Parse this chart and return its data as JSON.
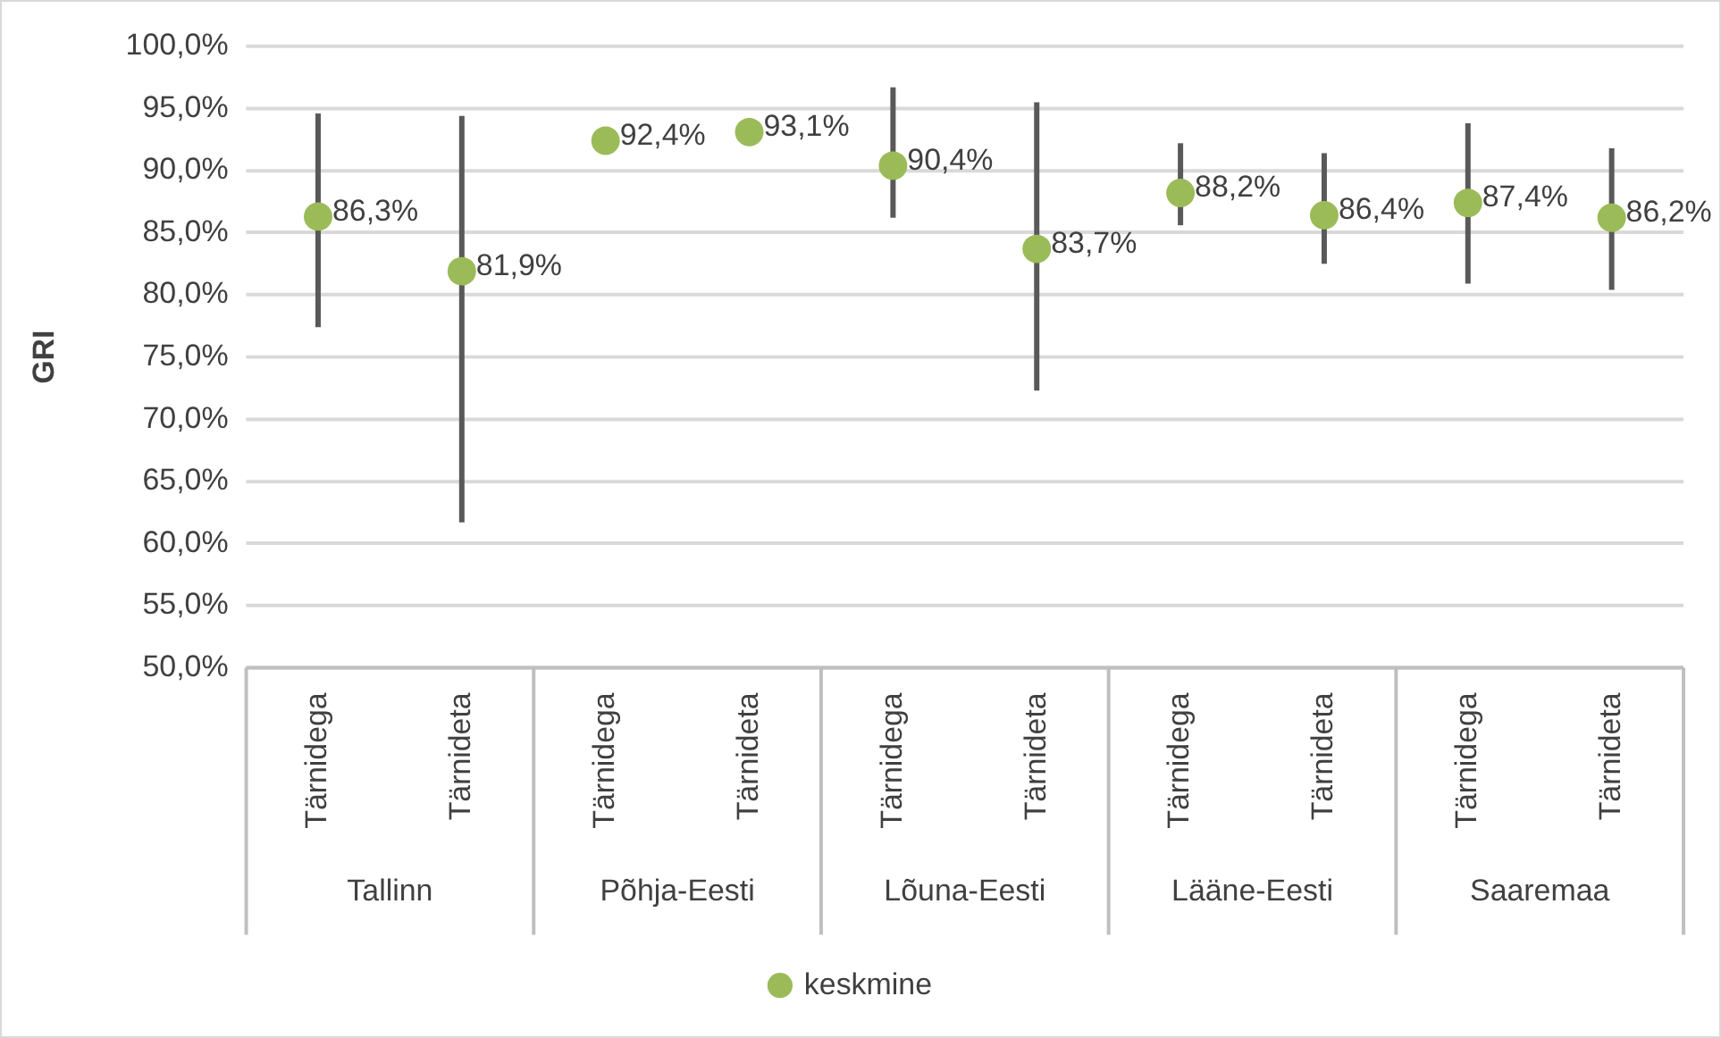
{
  "chart_data": {
    "type": "scatter",
    "ylabel": "GRI",
    "categories": [
      "Tärnidega",
      "Tärnideta",
      "Tärnidega",
      "Tärnideta",
      "Tärnidega",
      "Tärnideta",
      "Tärnidega",
      "Tärnideta",
      "Tärnidega",
      "Tärnideta"
    ],
    "annotations": [
      "Tallinn",
      "Põhja-Eesti",
      "Lõuna-Eesti",
      "Lääne-Eesti",
      "Saaremaa"
    ],
    "series": [
      {
        "name": "keskmine",
        "color": "#9bbb59",
        "values": [
          86.3,
          81.9,
          92.4,
          93.1,
          90.4,
          83.7,
          88.2,
          86.4,
          87.4,
          86.2
        ],
        "value_labels": [
          "86,3%",
          "81,9%",
          "92,4%",
          "93,1%",
          "90,4%",
          "83,7%",
          "88,2%",
          "86,4%",
          "87,4%",
          "86,2%"
        ],
        "errors": [
          [
            77.4,
            94.6
          ],
          [
            61.7,
            94.4
          ],
          null,
          null,
          [
            86.2,
            96.7
          ],
          [
            72.3,
            95.5
          ],
          [
            85.6,
            92.2
          ],
          [
            82.5,
            91.4
          ],
          [
            80.9,
            93.8
          ],
          [
            80.4,
            91.8
          ]
        ]
      }
    ],
    "ylim": [
      50,
      100
    ],
    "yticks": [
      {
        "value": 50,
        "label": "50,0%"
      },
      {
        "value": 55,
        "label": "55,0%"
      },
      {
        "value": 60,
        "label": "60,0%"
      },
      {
        "value": 65,
        "label": "65,0%"
      },
      {
        "value": 70,
        "label": "70,0%"
      },
      {
        "value": 75,
        "label": "75,0%"
      },
      {
        "value": 80,
        "label": "80,0%"
      },
      {
        "value": 85,
        "label": "85,0%"
      },
      {
        "value": 90,
        "label": "90,0%"
      },
      {
        "value": 95,
        "label": "95,0%"
      },
      {
        "value": 100,
        "label": "100,0%"
      }
    ],
    "grid": "y",
    "legend": "bottom",
    "marker": "circle"
  }
}
